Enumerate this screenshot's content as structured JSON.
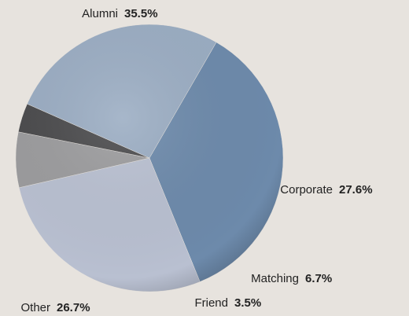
{
  "chart_data": {
    "type": "pie",
    "categories": [
      "Alumni",
      "Corporate",
      "Matching",
      "Friend",
      "Other"
    ],
    "values": [
      35.5,
      27.6,
      6.7,
      3.5,
      26.7
    ],
    "value_labels": [
      "35.5%",
      "27.6%",
      "6.7%",
      "3.5%",
      "26.7%"
    ],
    "colors": [
      "#6d8aab",
      "#b9c0d1",
      "#9c9c9e",
      "#4b4b4d",
      "#9badc3"
    ]
  }
}
